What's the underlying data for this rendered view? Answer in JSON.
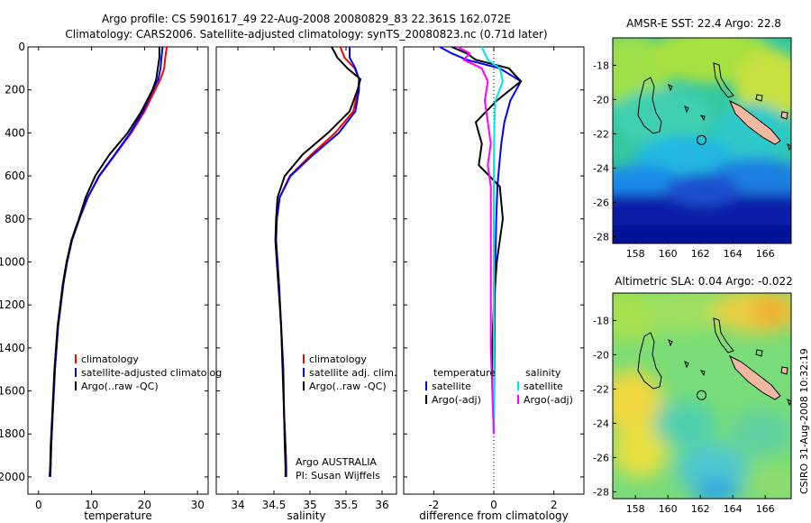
{
  "title_line1": "Argo profile: CS 5901617_49 22-Aug-2008 20080829_83 22.361S 162.072E",
  "title_line2": "Climatology: CARS2006. Satellite-adjusted climatology: synTS_20080823.nc (0.71d later)",
  "footer_credit": "Argo AUSTRALIA",
  "footer_pi": "PI: Susan Wijffels",
  "side_stamp": "CSIRO 31-Aug-2008 10:32:19",
  "colors": {
    "climatology": "#ff0000",
    "satellite": "#0000ff",
    "argo": "#000000",
    "salinity_satellite": "#00e5ee",
    "salinity_argo": "#ff00ff"
  },
  "chart_data": [
    {
      "type": "line",
      "name": "temperature-profile",
      "xlabel": "temperature",
      "ylabel": "",
      "xlim": [
        -2,
        32
      ],
      "ylim": [
        2080,
        0
      ],
      "xticks": [
        0,
        10,
        20,
        30
      ],
      "yticks": [
        0,
        200,
        400,
        600,
        800,
        1000,
        1200,
        1400,
        1600,
        1800,
        2000
      ],
      "legend": [
        "climatology",
        "satellite-adjusted climatolog",
        "Argo(..raw -QC)"
      ],
      "series": [
        {
          "name": "climatology",
          "color": "#ff0000",
          "x": [
            24.2,
            23.9,
            23.7,
            23.0,
            22.0,
            20.0,
            17.5,
            14.5,
            11.5,
            9.3,
            7.7,
            6.3,
            5.4,
            4.7,
            3.7,
            3.1,
            2.7,
            2.4,
            2.3,
            2.2
          ],
          "y": [
            0,
            50,
            100,
            150,
            200,
            300,
            400,
            500,
            600,
            700,
            800,
            900,
            1000,
            1100,
            1300,
            1500,
            1700,
            1850,
            1950,
            2000
          ]
        },
        {
          "name": "satellite-adjusted climatolog",
          "color": "#0000ff",
          "x": [
            23.4,
            23.2,
            23.0,
            22.6,
            21.6,
            19.7,
            17.3,
            14.4,
            11.4,
            9.3,
            7.7,
            6.3,
            5.4,
            4.7,
            3.7,
            3.1,
            2.7,
            2.4,
            2.3,
            2.2
          ],
          "y": [
            0,
            50,
            100,
            150,
            200,
            300,
            400,
            500,
            600,
            700,
            800,
            900,
            1000,
            1100,
            1300,
            1500,
            1700,
            1850,
            1950,
            2000
          ]
        },
        {
          "name": "Argo(..raw -QC)",
          "color": "#000000",
          "x": [
            22.8,
            22.8,
            22.5,
            22.2,
            21.5,
            19.4,
            16.8,
            13.4,
            10.7,
            8.9,
            7.6,
            6.2,
            5.3,
            4.6,
            3.6,
            3.0,
            2.6,
            2.3,
            2.2,
            2.1
          ],
          "y": [
            0,
            50,
            100,
            150,
            200,
            300,
            400,
            500,
            600,
            700,
            800,
            900,
            1000,
            1100,
            1300,
            1500,
            1700,
            1850,
            1950,
            2000
          ]
        }
      ]
    },
    {
      "type": "line",
      "name": "salinity-profile",
      "xlabel": "salinity",
      "xlim": [
        33.7,
        36.2
      ],
      "ylim": [
        2080,
        0
      ],
      "xticks": [
        34,
        34.5,
        35,
        35.5,
        36
      ],
      "legend": [
        "climatology",
        "satellite adj. clim.",
        "Argo(..raw -QC)"
      ],
      "series": [
        {
          "name": "climatology",
          "color": "#ff0000",
          "x": [
            35.42,
            35.48,
            35.62,
            35.68,
            35.67,
            35.6,
            35.35,
            35.02,
            34.72,
            34.58,
            34.54,
            34.53,
            34.55,
            34.57,
            34.6,
            34.63,
            34.64,
            34.66,
            34.67,
            34.67
          ],
          "y": [
            0,
            50,
            100,
            150,
            200,
            300,
            400,
            500,
            600,
            700,
            800,
            900,
            1000,
            1100,
            1300,
            1500,
            1700,
            1850,
            1950,
            2000
          ]
        },
        {
          "name": "satellite adj. clim.",
          "color": "#0000ff",
          "x": [
            35.55,
            35.55,
            35.63,
            35.68,
            35.68,
            35.63,
            35.4,
            35.05,
            34.73,
            34.58,
            34.54,
            34.53,
            34.55,
            34.57,
            34.6,
            34.63,
            34.64,
            34.66,
            34.67,
            34.67
          ],
          "y": [
            0,
            50,
            100,
            150,
            200,
            300,
            400,
            500,
            600,
            700,
            800,
            900,
            1000,
            1100,
            1300,
            1500,
            1700,
            1850,
            1950,
            2000
          ]
        },
        {
          "name": "Argo(..raw -QC)",
          "color": "#000000",
          "x": [
            35.3,
            35.38,
            35.52,
            35.7,
            35.66,
            35.55,
            35.25,
            34.9,
            34.65,
            34.55,
            34.53,
            34.52,
            34.54,
            34.56,
            34.6,
            34.62,
            34.64,
            34.65,
            34.66,
            34.66
          ],
          "y": [
            0,
            50,
            100,
            150,
            200,
            300,
            400,
            500,
            600,
            700,
            800,
            900,
            1000,
            1100,
            1300,
            1500,
            1700,
            1850,
            1950,
            2000
          ]
        }
      ]
    },
    {
      "type": "line",
      "name": "difference-profile",
      "xlabel": "difference from climatology",
      "xlim": [
        -3,
        3
      ],
      "ylim": [
        2080,
        0
      ],
      "xticks": [
        -2,
        0,
        2
      ],
      "legend_temperature": [
        "temperature",
        "satellite",
        "Argo(-adj)"
      ],
      "legend_salinity": [
        "salinity",
        "satellite",
        "Argo(-adj)"
      ],
      "series": [
        {
          "name": "temperature satellite",
          "color": "#0000ff",
          "x": [
            -1.8,
            -1.4,
            -0.9,
            0.2,
            0.9,
            0.55,
            0.35,
            0.25,
            0.18,
            0.12,
            0.08,
            0.05,
            0.03,
            0.02,
            0.01,
            0.0
          ],
          "y": [
            0,
            30,
            60,
            100,
            160,
            250,
            350,
            450,
            550,
            650,
            800,
            1000,
            1200,
            1400,
            1600,
            1800
          ]
        },
        {
          "name": "temperature Argo(-adj)",
          "color": "#000000",
          "x": [
            -1.4,
            -0.9,
            -0.6,
            0.5,
            0.9,
            0.1,
            -0.6,
            -0.4,
            -0.5,
            0.2,
            0.3,
            0.1,
            0.0,
            -0.05,
            -0.02,
            0.0
          ],
          "y": [
            0,
            30,
            60,
            100,
            160,
            250,
            350,
            450,
            550,
            650,
            800,
            1000,
            1200,
            1400,
            1600,
            1800
          ]
        },
        {
          "name": "salinity satellite",
          "color": "#00e5ee",
          "x": [
            -0.4,
            -0.3,
            -0.2,
            0.2,
            0.3,
            0.05,
            0.02,
            0.01,
            0.0,
            0.0,
            0.0,
            0.0,
            0.0,
            0.0,
            0.0,
            0.0
          ],
          "y": [
            0,
            30,
            60,
            100,
            160,
            250,
            350,
            450,
            550,
            650,
            800,
            1000,
            1200,
            1400,
            1600,
            1800
          ]
        },
        {
          "name": "salinity Argo(-adj)",
          "color": "#ff00ff",
          "x": [
            -1.2,
            -0.8,
            -1.0,
            -0.4,
            -0.2,
            -0.3,
            -0.2,
            -0.1,
            -0.2,
            -0.1,
            -0.1,
            -0.1,
            -0.1,
            -0.1,
            -0.05,
            0.0
          ],
          "y": [
            0,
            30,
            60,
            100,
            160,
            250,
            350,
            450,
            550,
            650,
            800,
            1000,
            1200,
            1400,
            1600,
            1800
          ]
        }
      ]
    },
    {
      "type": "heatmap",
      "name": "sst-map",
      "title": "AMSR-E SST: 22.4  Argo: 22.8",
      "xlim": [
        156.6,
        167.6
      ],
      "ylim": [
        -28.4,
        -16.4
      ],
      "xticks": [
        158,
        160,
        162,
        164,
        166
      ],
      "yticks": [
        -18,
        -20,
        -22,
        -24,
        -26,
        -28
      ],
      "float_position": {
        "lon": 162.072,
        "lat": -22.361
      }
    },
    {
      "type": "heatmap",
      "name": "sla-map",
      "title": "Altimetric SLA: 0.04  Argo: -0.022",
      "xlim": [
        156.6,
        167.6
      ],
      "ylim": [
        -28.4,
        -16.4
      ],
      "xticks": [
        158,
        160,
        162,
        164,
        166
      ],
      "yticks": [
        -18,
        -20,
        -22,
        -24,
        -26,
        -28
      ],
      "float_position": {
        "lon": 162.072,
        "lat": -22.361
      }
    }
  ]
}
